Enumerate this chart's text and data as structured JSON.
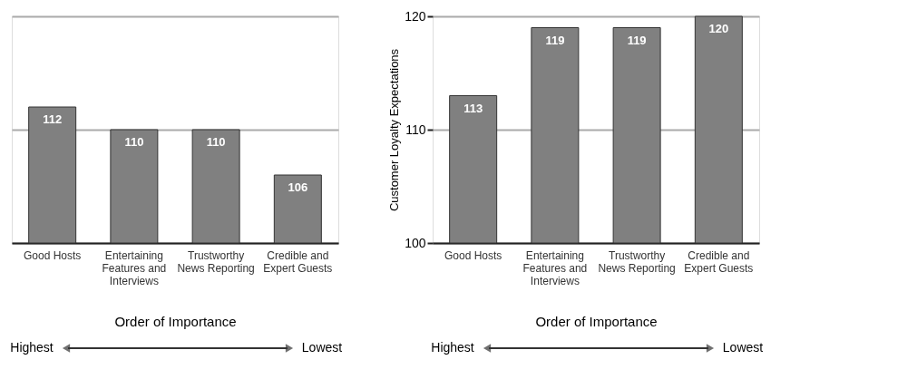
{
  "chart_data": [
    {
      "type": "bar",
      "categories": [
        "Good Hosts",
        "Entertaining Features and Interviews",
        "Trustworthy News Reporting",
        "Credible and Expert Guests"
      ],
      "values": [
        112,
        110,
        110,
        106
      ],
      "color": "#808080",
      "ylim": [
        100,
        120
      ],
      "yticks": [
        100,
        110,
        120
      ],
      "grid": "y",
      "tick_labels": "x",
      "data_labels": true,
      "xlabel": "Order of Importance",
      "annotations": [
        "Highest",
        "Lowest"
      ]
    },
    {
      "type": "bar",
      "categories": [
        "Good Hosts",
        "Entertaining Features and Interviews",
        "Trustworthy News Reporting",
        "Credible and Expert Guests"
      ],
      "values": [
        113,
        119,
        119,
        120
      ],
      "color": "#808080",
      "ylim": [
        100,
        120
      ],
      "yticks": [
        100,
        110,
        120
      ],
      "grid": "y",
      "data_labels": true,
      "xlabel": "Order of Importance",
      "ylabel": "Customer Loyalty Expectations",
      "annotations": [
        "Highest",
        "Lowest"
      ]
    }
  ]
}
